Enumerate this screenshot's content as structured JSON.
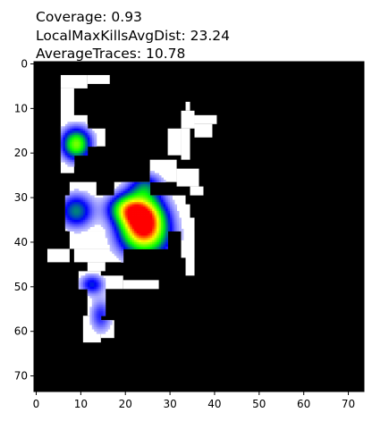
{
  "chart_data": {
    "type": "heatmap",
    "title_lines": [
      "Coverage: 0.93",
      "LocalMaxKillsAvgDist: 23.24",
      "AverageTraces: 10.78"
    ],
    "xlabel": "",
    "ylabel": "",
    "xlim": [
      0,
      74
    ],
    "ylim": [
      74,
      0
    ],
    "x_ticks": [
      0,
      10,
      20,
      30,
      40,
      50,
      60,
      70
    ],
    "y_ticks": [
      0,
      10,
      20,
      30,
      40,
      50,
      60,
      70
    ],
    "y_axis_inverted": true,
    "grid": false,
    "background_color": "#000000",
    "coverage_color": "#ffffff",
    "colormap": [
      "#ffffff",
      "#0000ff",
      "#00ff00",
      "#ffff00",
      "#ff0000"
    ],
    "coverage_rects": [
      [
        6,
        3,
        12,
        6
      ],
      [
        12,
        3,
        17,
        5
      ],
      [
        6,
        6,
        9,
        25
      ],
      [
        8,
        12,
        12,
        21
      ],
      [
        12,
        15,
        16,
        19
      ],
      [
        34,
        9,
        35,
        11
      ],
      [
        33,
        11,
        36,
        15
      ],
      [
        36,
        12,
        41,
        14
      ],
      [
        36,
        14,
        40,
        17
      ],
      [
        30,
        15,
        33,
        21
      ],
      [
        33,
        15,
        35,
        22
      ],
      [
        26,
        22,
        32,
        27
      ],
      [
        32,
        24,
        37,
        28
      ],
      [
        35,
        28,
        38,
        30
      ],
      [
        8,
        27,
        14,
        30
      ],
      [
        18,
        27,
        26,
        32
      ],
      [
        7,
        30,
        20,
        38
      ],
      [
        20,
        30,
        34,
        38
      ],
      [
        32,
        32,
        35,
        38
      ],
      [
        33,
        35,
        36,
        44
      ],
      [
        34,
        38,
        36,
        48
      ],
      [
        8,
        38,
        30,
        42
      ],
      [
        9,
        42,
        20,
        45
      ],
      [
        3,
        42,
        8,
        45
      ],
      [
        12,
        45,
        16,
        47
      ],
      [
        10,
        47,
        15,
        51
      ],
      [
        14,
        48,
        20,
        51
      ],
      [
        20,
        49,
        28,
        51
      ],
      [
        12,
        51,
        16,
        57
      ],
      [
        11,
        57,
        15,
        63
      ],
      [
        15,
        58,
        18,
        62
      ]
    ],
    "intensity_blobs": [
      {
        "x": 9.5,
        "y": 18.5,
        "sx": 2.2,
        "sy": 2.4,
        "peak": 0.62
      },
      {
        "x": 9.5,
        "y": 33.5,
        "sx": 2.5,
        "sy": 2.5,
        "peak": 0.38
      },
      {
        "x": 21,
        "y": 33,
        "sx": 3.0,
        "sy": 2.2,
        "peak": 0.5
      },
      {
        "x": 24.5,
        "y": 35.5,
        "sx": 3.3,
        "sy": 3.4,
        "peak": 1.0
      },
      {
        "x": 25,
        "y": 40,
        "sx": 4.0,
        "sy": 3.2,
        "peak": 0.4
      },
      {
        "x": 25,
        "y": 28,
        "sx": 2.5,
        "sy": 2.0,
        "peak": 0.3
      },
      {
        "x": 13,
        "y": 50,
        "sx": 1.8,
        "sy": 1.5,
        "peak": 0.28
      },
      {
        "x": 15,
        "y": 57,
        "sx": 1.6,
        "sy": 2.5,
        "peak": 0.22
      }
    ]
  }
}
